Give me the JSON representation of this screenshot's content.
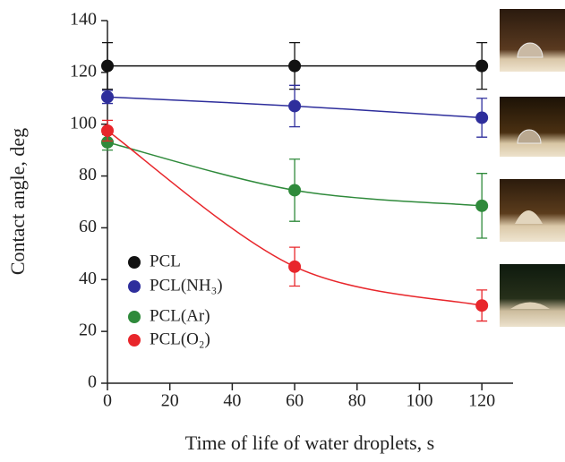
{
  "chart_data": {
    "type": "line",
    "x_label": "Time of life of water droplets, s",
    "y_label": "Contact angle, deg",
    "x": [
      0,
      60,
      120
    ],
    "xlim": [
      0,
      130
    ],
    "xticks": [
      0,
      20,
      40,
      60,
      80,
      100,
      120
    ],
    "ylim": [
      0,
      140
    ],
    "yticks": [
      0,
      20,
      40,
      60,
      80,
      100,
      120,
      140
    ],
    "grid": false,
    "legend": "lower left",
    "series": [
      {
        "name": "PCL",
        "color": "#111111",
        "values": [
          122.5,
          122.5,
          122.5
        ],
        "errors": [
          9,
          9,
          9
        ]
      },
      {
        "name": "PCL(NH₃)",
        "color": "#2e2e9c",
        "values": [
          110.5,
          107,
          102.5
        ],
        "errors": [
          2.5,
          8,
          7.5
        ]
      },
      {
        "name": "PCL(Ar)",
        "color": "#2f8a3b",
        "values": [
          93,
          74.5,
          68.5
        ],
        "errors": [
          3,
          12,
          12.5
        ]
      },
      {
        "name": "PCL(O₂)",
        "color": "#e8262b",
        "values": [
          97.5,
          45,
          30
        ],
        "errors": [
          4,
          7.5,
          6
        ]
      }
    ]
  }
}
